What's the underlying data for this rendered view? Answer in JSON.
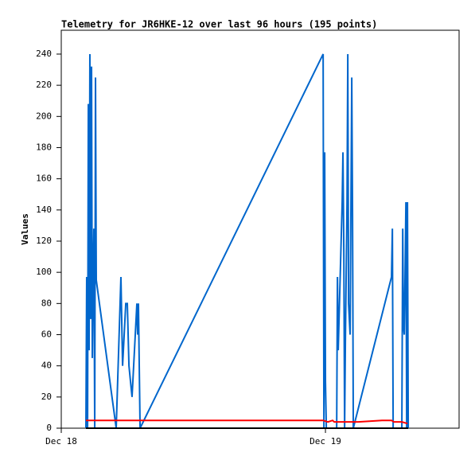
{
  "chart_data": {
    "type": "line",
    "title": "Telemetry for JR6HKE-12 over last 96 hours (195 points)",
    "y_label": "Values",
    "xlim": [
      0,
      36.14
    ],
    "xticks": [
      {
        "value": 0,
        "label": "Dec 18"
      },
      {
        "value": 24,
        "label": "Dec 19"
      }
    ],
    "ylim": [
      0,
      255.3
    ],
    "yticks": [
      0,
      20,
      40,
      60,
      80,
      100,
      120,
      140,
      160,
      180,
      200,
      220,
      240
    ],
    "grid": false,
    "series": [
      {
        "color": "#0066cc",
        "x": [
          2.24,
          2.31,
          2.39,
          2.46,
          2.53,
          2.6,
          2.67,
          2.75,
          2.82,
          2.89,
          2.96,
          3.04,
          3.11,
          3.18,
          4.99,
          5.42,
          5.57,
          5.86,
          6.0,
          6.15,
          6.43,
          6.87,
          6.94,
          7.01,
          7.16,
          23.79,
          23.86,
          23.93,
          24.0,
          24.08,
          25.02,
          25.09,
          25.16,
          25.52,
          25.59,
          25.67,
          25.74,
          25.81,
          25.96,
          26.03,
          26.1,
          26.24,
          26.39,
          26.46,
          26.53,
          30.0,
          30.08,
          30.15,
          30.94,
          31.02,
          31.09,
          31.16,
          31.23,
          31.31,
          31.38,
          31.45,
          31.52
        ],
        "values": [
          0,
          97,
          0,
          208,
          50,
          240,
          70,
          232,
          45,
          98,
          128,
          0,
          225,
          95,
          0,
          97,
          40,
          80,
          80,
          40,
          20,
          80,
          60,
          80,
          0,
          240,
          0,
          177,
          30,
          0,
          0,
          97,
          50,
          145,
          177,
          113,
          0,
          55,
          145,
          240,
          80,
          60,
          225,
          137,
          0,
          97,
          128,
          0,
          0,
          128,
          65,
          60,
          97,
          145,
          0,
          145,
          0
        ]
      },
      {
        "color": "#ff0000",
        "x": [
          2.24,
          2.96,
          23.79,
          24.22,
          24.65,
          24.8,
          26.61,
          26.97,
          29.14,
          30.0,
          30.22,
          30.94,
          31.45
        ],
        "values": [
          5,
          5,
          5,
          4,
          5,
          4,
          4,
          4,
          5,
          5,
          4,
          4,
          3
        ]
      },
      {
        "color": "#000000",
        "x": [
          2.24,
          31.52
        ],
        "values": [
          0,
          0
        ]
      }
    ]
  }
}
